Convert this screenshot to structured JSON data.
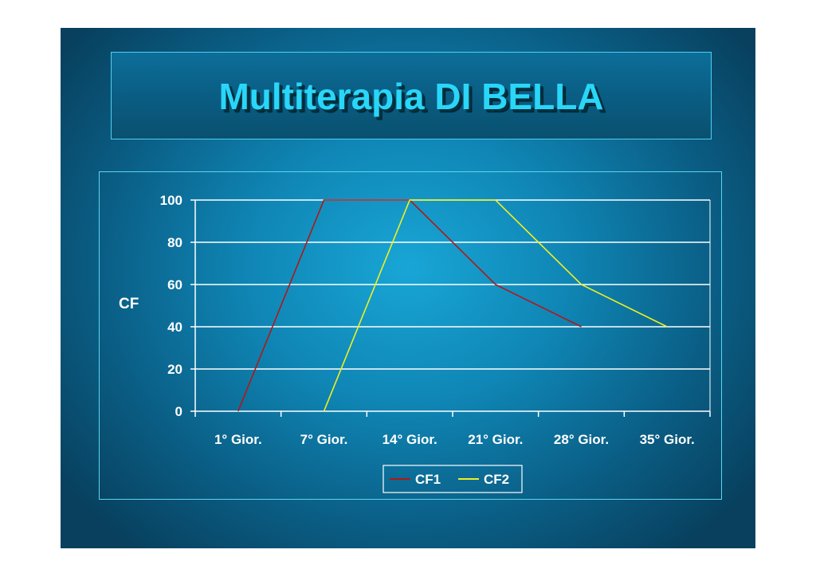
{
  "slide": {
    "title": "Multiterapia DI BELLA"
  },
  "chart_data": {
    "type": "line",
    "categories": [
      "1° Gior.",
      "7° Gior.",
      "14° Gior.",
      "21° Gior.",
      "28° Gior.",
      "35° Gior."
    ],
    "x_points": [
      0.5,
      1.5,
      2.5,
      3.5,
      4.5,
      5.5
    ],
    "series": [
      {
        "name": "CF1",
        "color": "#b01818",
        "x": [
          0.5,
          1.5,
          2.5,
          3.5,
          4.5
        ],
        "values": [
          0,
          100,
          100,
          60,
          40
        ]
      },
      {
        "name": "CF2",
        "color": "#f0f020",
        "x": [
          1.5,
          2.5,
          3.5,
          4.5,
          5.5
        ],
        "values": [
          0,
          100,
          100,
          60,
          40
        ]
      }
    ],
    "title": "",
    "xlabel": "",
    "ylabel": "CF",
    "ylim": [
      0,
      100
    ],
    "yticks": [
      0,
      20,
      40,
      60,
      80,
      100
    ],
    "grid": true,
    "legend": "bottom"
  }
}
